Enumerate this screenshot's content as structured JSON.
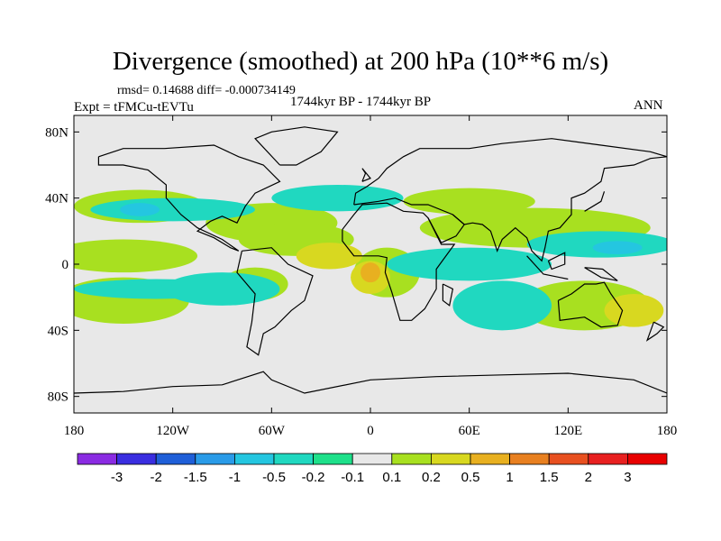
{
  "chart_data": {
    "type": "heatmap",
    "title": "Divergence (smoothed) at 200 hPa (10**6 m/s)",
    "stats": "rmsd= 0.14688 diff= -0.000734149",
    "experiment": "Expt = tFMCu-tEVTu",
    "period": "1744kyr BP - 1744kyr BP",
    "season": "ANN",
    "x_ticks": [
      {
        "label": "180",
        "lon": -180
      },
      {
        "label": "120W",
        "lon": -120
      },
      {
        "label": "60W",
        "lon": -60
      },
      {
        "label": "0",
        "lon": 0
      },
      {
        "label": "60E",
        "lon": 60
      },
      {
        "label": "120E",
        "lon": 120
      },
      {
        "label": "180",
        "lon": 180
      }
    ],
    "y_ticks": [
      {
        "label": "80N",
        "lat": 80
      },
      {
        "label": "40N",
        "lat": 40
      },
      {
        "label": "0",
        "lat": 0
      },
      {
        "label": "40S",
        "lat": -40
      },
      {
        "label": "80S",
        "lat": -80
      }
    ],
    "xlim": [
      -180,
      180
    ],
    "ylim": [
      -90,
      90
    ],
    "colorbar": {
      "labels": [
        "-3",
        "-2",
        "-1.5",
        "-1",
        "-0.5",
        "-0.2",
        "-0.1",
        "0.1",
        "0.2",
        "0.5",
        "1",
        "1.5",
        "2",
        "3"
      ],
      "colors": [
        "#8a2be2",
        "#3a2ee0",
        "#1f5fd8",
        "#2a9be8",
        "#24c6e0",
        "#20d8c0",
        "#1ee08a",
        "#e8e8e8",
        "#a8e020",
        "#d8d820",
        "#e8b020",
        "#e88020",
        "#e85020",
        "#e82020",
        "#e80000"
      ]
    },
    "regions": [
      {
        "level": "0.1",
        "lon": -140,
        "lat": 35,
        "rlon": 40,
        "rlat": 10
      },
      {
        "level": "0.1",
        "lon": -60,
        "lat": 25,
        "rlon": 40,
        "rlat": 12
      },
      {
        "level": "0.1",
        "lon": -150,
        "lat": 5,
        "rlon": 45,
        "rlat": 10
      },
      {
        "level": "0.1",
        "lon": -45,
        "lat": 15,
        "rlon": 35,
        "rlat": 10
      },
      {
        "level": "0.1",
        "lon": -150,
        "lat": -22,
        "rlon": 40,
        "rlat": 14
      },
      {
        "level": "0.1",
        "lon": 100,
        "lat": 22,
        "rlon": 70,
        "rlat": 12
      },
      {
        "level": "0.1",
        "lon": 130,
        "lat": -25,
        "rlon": 40,
        "rlat": 15
      },
      {
        "level": "0.1",
        "lon": -70,
        "lat": -12,
        "rlon": 20,
        "rlat": 10
      },
      {
        "level": "0.1",
        "lon": 10,
        "lat": -5,
        "rlon": 20,
        "rlat": 15
      },
      {
        "level": "0.1",
        "lon": 60,
        "lat": 38,
        "rlon": 40,
        "rlat": 8
      },
      {
        "level": "0.2",
        "lon": -25,
        "lat": 5,
        "rlon": 20,
        "rlat": 8
      },
      {
        "level": "0.2",
        "lon": 0,
        "lat": -8,
        "rlon": 12,
        "rlat": 10
      },
      {
        "level": "0.2",
        "lon": 160,
        "lat": -28,
        "rlon": 18,
        "rlat": 10
      },
      {
        "level": "0.5",
        "lon": 0,
        "lat": -5,
        "rlon": 6,
        "rlat": 6
      },
      {
        "level": "-0.1",
        "lon": -120,
        "lat": 33,
        "rlon": 50,
        "rlat": 7
      },
      {
        "level": "-0.1",
        "lon": -20,
        "lat": 40,
        "rlon": 40,
        "rlat": 8
      },
      {
        "level": "-0.1",
        "lon": 140,
        "lat": 12,
        "rlon": 45,
        "rlat": 8
      },
      {
        "level": "-0.1",
        "lon": 60,
        "lat": 0,
        "rlon": 50,
        "rlat": 10
      },
      {
        "level": "-0.1",
        "lon": -130,
        "lat": -15,
        "rlon": 50,
        "rlat": 6
      },
      {
        "level": "-0.1",
        "lon": -90,
        "lat": -15,
        "rlon": 35,
        "rlat": 10
      },
      {
        "level": "-0.1",
        "lon": 80,
        "lat": -25,
        "rlon": 30,
        "rlat": 15
      },
      {
        "level": "-0.2",
        "lon": -140,
        "lat": 33,
        "rlon": 12,
        "rlat": 4
      },
      {
        "level": "-0.2",
        "lon": 150,
        "lat": 10,
        "rlon": 15,
        "rlat": 4
      }
    ]
  }
}
